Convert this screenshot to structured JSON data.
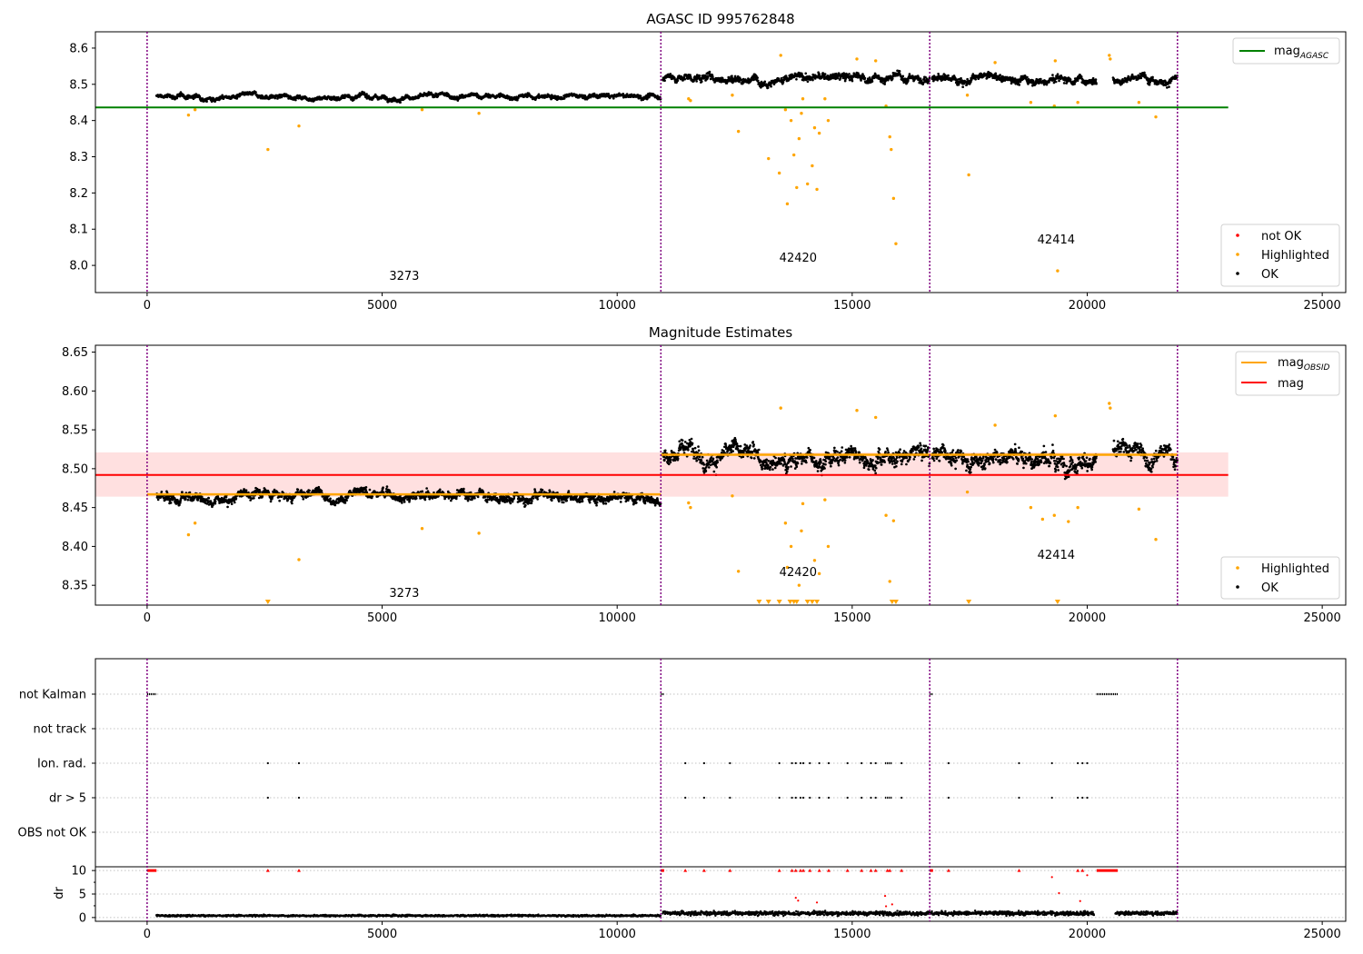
{
  "chart_data": [
    {
      "type": "scatter",
      "title": "AGASC ID 995762848",
      "xlim": [
        -1100,
        25500
      ],
      "ylim": [
        7.925,
        8.645
      ],
      "xticks": [
        0,
        5000,
        10000,
        15000,
        20000,
        25000
      ],
      "yticks": [
        8.0,
        8.1,
        8.2,
        8.3,
        8.4,
        8.5,
        8.6
      ],
      "ytick_labels": [
        "8.0",
        "8.1",
        "8.2",
        "8.3",
        "8.4",
        "8.5",
        "8.6"
      ],
      "obsid_boundaries": [
        0,
        10930,
        16650,
        21920
      ],
      "obsid_labels": [
        {
          "text": "3273",
          "x": 5470,
          "y": 7.96
        },
        {
          "text": "42420",
          "x": 13850,
          "y": 8.01
        },
        {
          "text": "42414",
          "x": 19340,
          "y": 8.06
        }
      ],
      "mag_agasc_line": {
        "y": 8.436,
        "x_range": [
          -1100,
          23000
        ]
      },
      "ok_segments": [
        {
          "x": [
            200,
            10930
          ],
          "center": 8.466,
          "spread": 0.016
        },
        {
          "x": [
            10970,
            16650
          ],
          "center": 8.518,
          "spread": 0.028
        },
        {
          "x": [
            16700,
            20200
          ],
          "center": 8.516,
          "spread": 0.028
        },
        {
          "x": [
            20550,
            21920
          ],
          "center": 8.518,
          "spread": 0.028
        }
      ],
      "highlighted_points": [
        [
          2570,
          8.32
        ],
        [
          3230,
          8.385
        ],
        [
          880,
          8.415
        ],
        [
          7060,
          8.42
        ],
        [
          5850,
          8.43
        ],
        [
          1020,
          8.43
        ],
        [
          12580,
          8.37
        ],
        [
          13220,
          8.295
        ],
        [
          13450,
          8.255
        ],
        [
          13580,
          8.43
        ],
        [
          13620,
          8.17
        ],
        [
          13700,
          8.4
        ],
        [
          13760,
          8.305
        ],
        [
          13820,
          8.215
        ],
        [
          13870,
          8.35
        ],
        [
          13920,
          8.42
        ],
        [
          14050,
          8.225
        ],
        [
          14150,
          8.275
        ],
        [
          14200,
          8.38
        ],
        [
          14250,
          8.21
        ],
        [
          14300,
          8.365
        ],
        [
          14490,
          8.4
        ],
        [
          13480,
          8.58
        ],
        [
          15800,
          8.355
        ],
        [
          15830,
          8.32
        ],
        [
          15880,
          8.185
        ],
        [
          15930,
          8.06
        ],
        [
          15720,
          8.44
        ],
        [
          17480,
          8.25
        ],
        [
          19370,
          7.985
        ],
        [
          18800,
          8.45
        ],
        [
          19300,
          8.44
        ],
        [
          19800,
          8.45
        ],
        [
          21460,
          8.41
        ],
        [
          21100,
          8.45
        ],
        [
          15100,
          8.57
        ],
        [
          15500,
          8.565
        ],
        [
          18040,
          8.56
        ],
        [
          19320,
          8.565
        ],
        [
          20470,
          8.58
        ],
        [
          20490,
          8.57
        ],
        [
          11520,
          8.46
        ],
        [
          11560,
          8.455
        ],
        [
          17450,
          8.47
        ],
        [
          13950,
          8.46
        ],
        [
          14420,
          8.46
        ],
        [
          12450,
          8.47
        ]
      ],
      "not_ok_points": [],
      "legend_top": [
        {
          "label": "mag",
          "sub": "AGASC",
          "color": "#008000"
        }
      ],
      "legend_bottom": [
        {
          "label": "not OK",
          "color": "#ff0000"
        },
        {
          "label": "Highlighted",
          "color": "#ffa500"
        },
        {
          "label": "OK",
          "color": "#000000"
        }
      ]
    },
    {
      "type": "scatter",
      "title": "Magnitude Estimates",
      "xlim": [
        -1100,
        25500
      ],
      "ylim": [
        8.3245,
        8.6588
      ],
      "xticks": [
        0,
        5000,
        10000,
        15000,
        20000,
        25000
      ],
      "yticks": [
        8.35,
        8.4,
        8.45,
        8.5,
        8.55,
        8.6,
        8.65
      ],
      "ytick_labels": [
        "8.35",
        "8.40",
        "8.45",
        "8.50",
        "8.55",
        "8.60",
        "8.65"
      ],
      "obsid_boundaries": [
        0,
        10930,
        16650,
        21920
      ],
      "obsid_labels": [
        {
          "text": "3273",
          "x": 5470,
          "y": 8.335
        },
        {
          "text": "42420",
          "x": 13850,
          "y": 8.362
        },
        {
          "text": "42414",
          "x": 19340,
          "y": 8.384
        }
      ],
      "mag_line": {
        "y": 8.492,
        "x_range": [
          -1100,
          23000
        ]
      },
      "mag_band": [
        8.464,
        8.521
      ],
      "mag_obsid_lines": [
        {
          "x": [
            0,
            10930
          ],
          "y": 8.467
        },
        {
          "x": [
            10930,
            21920
          ],
          "y": 8.518
        }
      ],
      "ok_segments": [
        {
          "x": [
            200,
            10930
          ],
          "center": 8.466,
          "spread": 0.016
        },
        {
          "x": [
            10970,
            16650
          ],
          "center": 8.518,
          "spread": 0.028
        },
        {
          "x": [
            16700,
            20200
          ],
          "center": 8.516,
          "spread": 0.028
        },
        {
          "x": [
            20550,
            21920
          ],
          "center": 8.518,
          "spread": 0.028
        }
      ],
      "highlighted_points": [
        [
          880,
          8.415
        ],
        [
          7060,
          8.417
        ],
        [
          5850,
          8.423
        ],
        [
          3230,
          8.383
        ],
        [
          1020,
          8.43
        ],
        [
          12580,
          8.368
        ],
        [
          13620,
          8.373
        ],
        [
          13700,
          8.4
        ],
        [
          13870,
          8.35
        ],
        [
          13920,
          8.42
        ],
        [
          14200,
          8.382
        ],
        [
          14300,
          8.365
        ],
        [
          14490,
          8.4
        ],
        [
          15800,
          8.355
        ],
        [
          21460,
          8.409
        ],
        [
          18800,
          8.45
        ],
        [
          19300,
          8.44
        ],
        [
          19800,
          8.45
        ],
        [
          21100,
          8.448
        ],
        [
          13480,
          8.578
        ],
        [
          15100,
          8.575
        ],
        [
          15500,
          8.566
        ],
        [
          18040,
          8.556
        ],
        [
          19320,
          8.568
        ],
        [
          20470,
          8.584
        ],
        [
          20490,
          8.578
        ],
        [
          11520,
          8.456
        ],
        [
          11560,
          8.45
        ],
        [
          17450,
          8.47
        ],
        [
          13950,
          8.455
        ],
        [
          14420,
          8.46
        ],
        [
          12450,
          8.465
        ],
        [
          13580,
          8.43
        ],
        [
          15720,
          8.44
        ],
        [
          15880,
          8.433
        ],
        [
          19050,
          8.435
        ],
        [
          19600,
          8.432
        ]
      ],
      "clipped_points_x": [
        2570,
        13020,
        13220,
        13450,
        13680,
        13760,
        13820,
        14050,
        14150,
        14250,
        15850,
        15930,
        17480,
        19370
      ],
      "legend_top": [
        {
          "label": "mag",
          "sub": "OBSID",
          "color": "#ffa500"
        },
        {
          "label": "mag",
          "sub": "",
          "color": "#ff0000"
        }
      ],
      "legend_bottom": [
        {
          "label": "Highlighted",
          "color": "#ffa500"
        },
        {
          "label": "OK",
          "color": "#000000"
        }
      ]
    },
    {
      "type": "scatter",
      "title": "",
      "xlim": [
        -1100,
        25500
      ],
      "xticks": [
        0,
        5000,
        10000,
        15000,
        20000,
        25000
      ],
      "obsid_boundaries": [
        0,
        10930,
        16650,
        21920
      ],
      "flag_labels": [
        "not Kalman",
        "not track",
        "Ion. rad.",
        "dr > 5",
        "OBS not OK"
      ],
      "flags": {
        "not Kalman": {
          "ranges": [
            [
              0,
              200
            ],
            [
              10930,
              11000
            ],
            [
              16650,
              16720
            ],
            [
              20200,
              20650
            ]
          ],
          "points": []
        },
        "not track": {
          "ranges": [],
          "points": []
        },
        "Ion. rad.": {
          "ranges": [
            [
              15700,
              15850
            ]
          ],
          "points": [
            2570,
            3230,
            11450,
            11850,
            12400,
            13450,
            13720,
            13800,
            13900,
            13960,
            14100,
            14300,
            14500,
            14900,
            15200,
            15400,
            15500,
            16050,
            17050,
            18550,
            19250,
            19800,
            19900,
            20000
          ]
        },
        "dr > 5": {
          "ranges": [
            [
              15700,
              15850
            ]
          ],
          "points": [
            2570,
            3230,
            11450,
            11850,
            12400,
            13450,
            13720,
            13800,
            13900,
            13960,
            14100,
            14300,
            14500,
            14900,
            15200,
            15400,
            15500,
            16050,
            17050,
            18550,
            19250,
            19800,
            19900,
            20000
          ]
        },
        "OBS not OK": {
          "ranges": [],
          "points": []
        }
      },
      "dr": {
        "ylim": [
          -0.8,
          10.8
        ],
        "yticks": [
          0,
          5,
          10
        ],
        "ylabel": "dr",
        "baseline_segments": [
          [
            200,
            10930,
            0.4,
            0.5
          ],
          [
            10970,
            20150,
            0.9,
            1.2
          ],
          [
            20600,
            21920,
            0.9,
            1.1
          ]
        ],
        "red_at_10_ranges": [
          [
            0,
            200
          ],
          [
            10930,
            11000
          ],
          [
            16650,
            16720
          ],
          [
            20200,
            20650
          ]
        ],
        "red_at_10_points": [
          2570,
          3230,
          11450,
          11850,
          12400,
          13450,
          13720,
          13800,
          13900,
          13960,
          14100,
          14300,
          14500,
          14900,
          15200,
          15400,
          15500,
          15750,
          15800,
          16050,
          17050,
          18550,
          19800,
          19900
        ],
        "red_extra_points": [
          [
            13800,
            4.2
          ],
          [
            13850,
            3.6
          ],
          [
            15700,
            4.6
          ],
          [
            15720,
            2.4
          ],
          [
            15850,
            2.8
          ],
          [
            19250,
            8.6
          ],
          [
            19400,
            5.2
          ],
          [
            19850,
            3.5
          ],
          [
            14250,
            3.2
          ],
          [
            20000,
            9.0
          ]
        ]
      }
    }
  ]
}
